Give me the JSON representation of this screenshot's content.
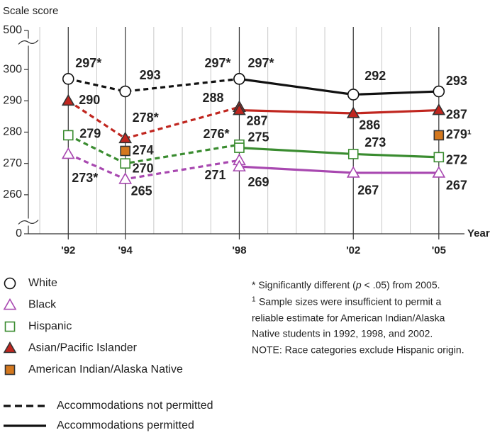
{
  "chart_data": {
    "type": "line",
    "y_label": "Scale score",
    "x_label": "Year",
    "x": [
      1992,
      1994,
      1998,
      2002,
      2005
    ],
    "xlim": [
      1990.6,
      2005.9
    ],
    "xticks": [
      {
        "value": 1992,
        "label": "'92"
      },
      {
        "value": 1994,
        "label": "'94"
      },
      {
        "value": 1998,
        "label": "'98"
      },
      {
        "value": 2002,
        "label": "'02"
      },
      {
        "value": 2005,
        "label": "'05"
      }
    ],
    "ylim": [
      0,
      500
    ],
    "y_breaks": [
      [
        0,
        255
      ],
      [
        305,
        500
      ]
    ],
    "yticks": [
      0,
      260,
      270,
      280,
      290,
      300,
      500
    ],
    "series": [
      {
        "name": "White",
        "color": "#111111",
        "marker": "circle-open",
        "line": true,
        "values_np": [
          297,
          293,
          297,
          null,
          null
        ],
        "labels_np": [
          "297*",
          "293",
          "297*",
          null,
          null
        ],
        "values_p": [
          null,
          null,
          297,
          292,
          293
        ],
        "labels_p": [
          null,
          null,
          "297*",
          "292",
          "293"
        ]
      },
      {
        "name": "Black",
        "color": "#a848b0",
        "marker": "triangle-open",
        "line": true,
        "values_np": [
          273,
          265,
          271,
          null,
          null
        ],
        "labels_np": [
          "273*",
          "265",
          "271",
          null,
          null
        ],
        "values_p": [
          null,
          null,
          269,
          267,
          267
        ],
        "labels_p": [
          null,
          null,
          "269",
          "267",
          "267"
        ]
      },
      {
        "name": "Hispanic",
        "color": "#3a8c30",
        "marker": "square-open",
        "line": true,
        "values_np": [
          279,
          270,
          276,
          null,
          null
        ],
        "labels_np": [
          "279",
          "270",
          "276*",
          null,
          null
        ],
        "values_p": [
          null,
          null,
          275,
          273,
          272
        ],
        "labels_p": [
          null,
          null,
          "275",
          "273",
          "272"
        ]
      },
      {
        "name": "Asian/Pacific Islander",
        "color": "#c0261f",
        "marker": "triangle-filled",
        "line": true,
        "values_np": [
          290,
          278,
          288,
          null,
          null
        ],
        "labels_np": [
          "290",
          "278*",
          "288",
          null,
          null
        ],
        "values_p": [
          null,
          null,
          287,
          286,
          287
        ],
        "labels_p": [
          null,
          null,
          "287",
          "286",
          "287"
        ]
      },
      {
        "name": "American Indian/Alaska Native",
        "color": "#d4781e",
        "marker": "square-filled",
        "line": false,
        "values_np": [
          null,
          274,
          null,
          null,
          null
        ],
        "labels_np": [
          null,
          "274",
          null,
          null,
          null
        ],
        "values_p": [
          null,
          null,
          null,
          null,
          279
        ],
        "labels_p": [
          null,
          null,
          null,
          null,
          "279¹"
        ]
      }
    ],
    "line_styles": [
      {
        "label": "Accommodations not permitted",
        "dash": "dashed"
      },
      {
        "label": "Accommodations permitted",
        "dash": "solid"
      }
    ]
  },
  "notes": {
    "significance": [
      "* Significantly different (",
      "p",
      " < .05) from 2005."
    ],
    "footnote_mark": "1",
    "footnote_lines": [
      "Sample sizes were insufficient to permit a",
      "reliable estimate for American Indian/Alaska",
      "Native students in 1992, 1998, and 2002."
    ],
    "note": "NOTE: Race categories exclude Hispanic origin."
  }
}
